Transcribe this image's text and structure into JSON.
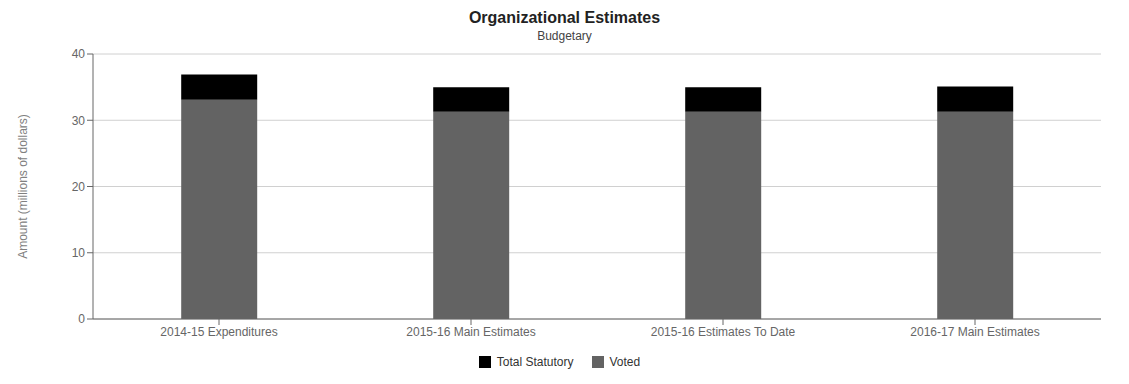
{
  "chart_data": {
    "type": "bar",
    "title": "Organizational Estimates",
    "subtitle": "Budgetary",
    "ylabel": "Amount (millions of dollars)",
    "categories": [
      "2014-15 Expenditures",
      "2015-16 Main Estimates",
      "2015-16 Estimates To Date",
      "2016-17 Main Estimates"
    ],
    "series": [
      {
        "name": "Voted",
        "color": "#636363",
        "values": [
          33.1,
          31.3,
          31.3,
          31.3
        ]
      },
      {
        "name": "Total Statutory",
        "color": "#000000",
        "values": [
          3.8,
          3.7,
          3.7,
          3.8
        ]
      }
    ],
    "stacked": true,
    "ylim": [
      0,
      40
    ],
    "yticks": [
      0,
      10,
      20,
      30,
      40
    ],
    "grid": true,
    "legend": "bottom"
  }
}
